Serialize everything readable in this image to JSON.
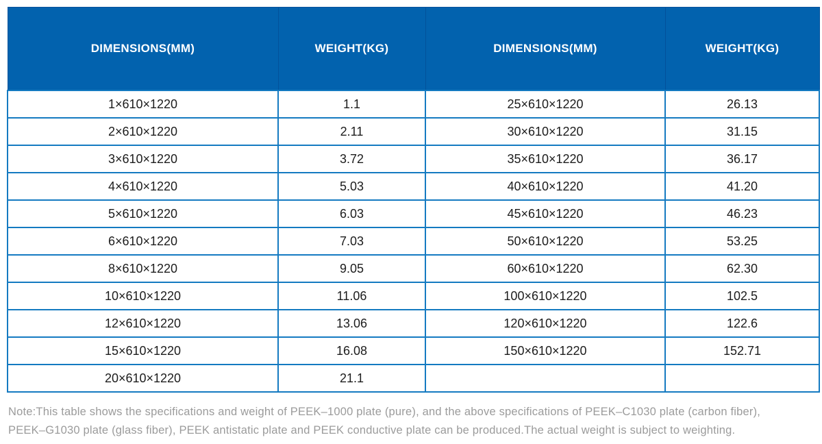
{
  "table": {
    "headers": [
      "DIMENSIONS(MM)",
      "WEIGHT(KG)",
      "DIMENSIONS(MM)",
      "WEIGHT(KG)"
    ],
    "rows": [
      [
        "1×610×1220",
        "1.1",
        "25×610×1220",
        "26.13"
      ],
      [
        "2×610×1220",
        "2.11",
        "30×610×1220",
        "31.15"
      ],
      [
        "3×610×1220",
        "3.72",
        "35×610×1220",
        "36.17"
      ],
      [
        "4×610×1220",
        "5.03",
        "40×610×1220",
        "41.20"
      ],
      [
        "5×610×1220",
        "6.03",
        "45×610×1220",
        "46.23"
      ],
      [
        "6×610×1220",
        "7.03",
        "50×610×1220",
        "53.25"
      ],
      [
        "8×610×1220",
        "9.05",
        "60×610×1220",
        "62.30"
      ],
      [
        "10×610×1220",
        "11.06",
        "100×610×1220",
        "102.5"
      ],
      [
        "12×610×1220",
        "13.06",
        "120×610×1220",
        "122.6"
      ],
      [
        "15×610×1220",
        "16.08",
        "150×610×1220",
        "152.71"
      ],
      [
        "20×610×1220",
        "21.1",
        "",
        ""
      ]
    ]
  },
  "note": {
    "line1": "Note:This table shows the specifications and weight of PEEK–1000 plate (pure), and the above specifications of PEEK–C1030 plate (carbon fiber),",
    "line2": "PEEK–G1030 plate (glass fiber), PEEK antistatic plate and PEEK conductive plate can be produced.The actual weight is subject to weighting."
  },
  "colors": {
    "header_bg": "#0262ae",
    "header_divider": "#02519b",
    "header_text": "#ffffff",
    "grid_line": "#147ac1",
    "body_text": "#1c1c1c",
    "note_text": "#9b9b9b"
  }
}
